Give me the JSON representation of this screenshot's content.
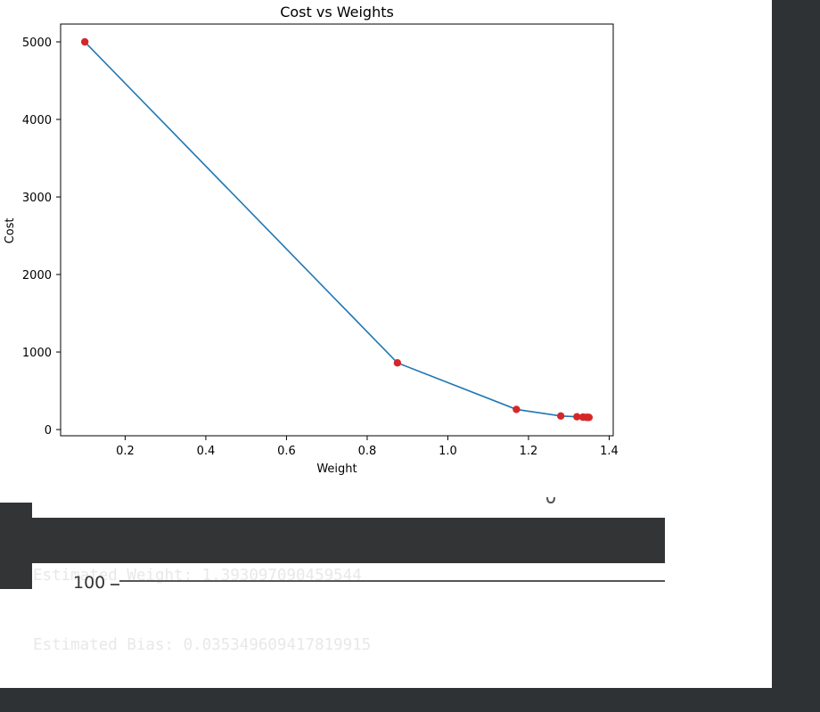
{
  "chart_data": {
    "type": "line",
    "title": "Cost vs Weights",
    "xlabel": "Weight",
    "ylabel": "Cost",
    "xlim": [
      0.04,
      1.41
    ],
    "ylim": [
      -80,
      5230
    ],
    "x_ticks": [
      0.2,
      0.4,
      0.6,
      0.8,
      1.0,
      1.2,
      1.4
    ],
    "x_tick_labels": [
      "0.2",
      "0.4",
      "0.6",
      "0.8",
      "1.0",
      "1.2",
      "1.4"
    ],
    "y_ticks": [
      0,
      1000,
      2000,
      3000,
      4000,
      5000
    ],
    "y_tick_labels": [
      "0",
      "1000",
      "2000",
      "3000",
      "4000",
      "5000"
    ],
    "grid": false,
    "series": [
      {
        "line_color": "#1f77b4",
        "marker_color": "#d62728",
        "x": [
          0.1,
          0.875,
          1.17,
          1.28,
          1.32,
          1.335,
          1.343,
          1.347,
          1.35
        ],
        "y": [
          5000,
          860,
          260,
          175,
          165,
          160,
          158,
          157,
          156
        ]
      }
    ]
  },
  "output": {
    "line1": "Estimated Weight: 1.393097090459544",
    "line2": "Estimated Bias: 0.035349609417819915"
  },
  "next_plot_stub": {
    "tick_label": "100"
  }
}
